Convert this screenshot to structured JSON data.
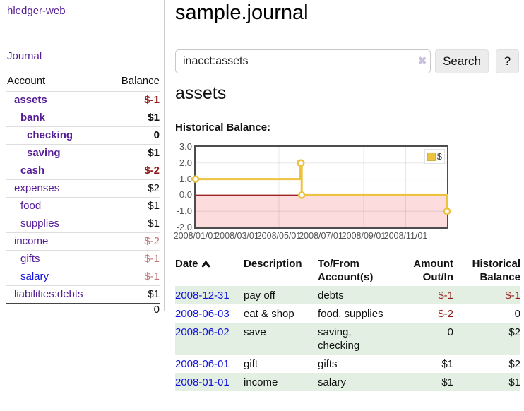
{
  "app": {
    "title": "hledger-web",
    "journal_label": "Journal"
  },
  "colors": {
    "link_purple": "#541d96",
    "link_blue": "#1212e0",
    "negative_strong": "#941c1c",
    "negative_light": "#c17878",
    "row_stripe_green": "#e2efe2",
    "chart_line_gold": "#edc240",
    "chart_negative_region": "#fcdcdc",
    "chart_zero_line": "#9e2222"
  },
  "sidebar": {
    "header": {
      "account": "Account",
      "balance": "Balance"
    },
    "accounts": [
      {
        "name": "assets",
        "level": 1,
        "balance": "$-1",
        "in_query": true,
        "balance_tone": "neg",
        "link_tone": "purple"
      },
      {
        "name": "bank",
        "level": 2,
        "balance": "$1",
        "in_query": true,
        "balance_tone": "pos",
        "link_tone": "purple"
      },
      {
        "name": "checking",
        "level": 3,
        "balance": "0",
        "in_query": true,
        "balance_tone": "pos",
        "link_tone": "purple"
      },
      {
        "name": "saving",
        "level": 3,
        "balance": "$1",
        "in_query": true,
        "balance_tone": "pos",
        "link_tone": "purple"
      },
      {
        "name": "cash",
        "level": 2,
        "balance": "$-2",
        "in_query": true,
        "balance_tone": "neg",
        "link_tone": "purple"
      },
      {
        "name": "expenses",
        "level": 1,
        "balance": "$2",
        "in_query": false,
        "balance_tone": "pos",
        "link_tone": "purple"
      },
      {
        "name": "food",
        "level": 2,
        "balance": "$1",
        "in_query": false,
        "balance_tone": "pos",
        "link_tone": "purple"
      },
      {
        "name": "supplies",
        "level": 2,
        "balance": "$1",
        "in_query": false,
        "balance_tone": "pos",
        "link_tone": "purple"
      },
      {
        "name": "income",
        "level": 1,
        "balance": "$-2",
        "in_query": false,
        "balance_tone": "neglight",
        "link_tone": "purple"
      },
      {
        "name": "gifts",
        "level": 2,
        "balance": "$-1",
        "in_query": false,
        "balance_tone": "neglight",
        "link_tone": "purple"
      },
      {
        "name": "salary",
        "level": 2,
        "balance": "$-1",
        "in_query": false,
        "balance_tone": "neglight",
        "link_tone": "blue"
      },
      {
        "name": "liabilities:debts",
        "level": 1,
        "balance": "$1",
        "in_query": false,
        "balance_tone": "pos",
        "link_tone": "purple"
      }
    ],
    "total": "0"
  },
  "main": {
    "title": "sample.journal"
  },
  "search": {
    "value": "inacct:assets",
    "clear_icon": "✖",
    "button_label": "Search",
    "help_label": "?"
  },
  "account_page": {
    "heading": "assets",
    "chart_title": "Historical Balance:"
  },
  "chart_data": {
    "type": "line",
    "step": true,
    "title": "Historical Balance:",
    "series": [
      {
        "name": "$",
        "color": "#edc240",
        "points": [
          [
            "2008-01-01",
            1
          ],
          [
            "2008-06-01",
            2
          ],
          [
            "2008-06-02",
            2
          ],
          [
            "2008-06-03",
            0
          ],
          [
            "2008-12-31",
            -1
          ]
        ]
      }
    ],
    "xlim": [
      "2008-01-01",
      "2008-12-31"
    ],
    "ylim": [
      -2,
      3
    ],
    "y_ticks": [
      "3.0",
      "2.0",
      "1.0",
      "0.0",
      "-1.0",
      "-2.0"
    ],
    "x_ticks": [
      {
        "date": "2008-01-01",
        "label": "2008/01/01"
      },
      {
        "date": "2008-03-01",
        "label": "2008/03/01"
      },
      {
        "date": "2008-05-01",
        "label": "2008/05/01"
      },
      {
        "date": "2008-07-01",
        "label": "2008/07/01"
      },
      {
        "date": "2008-09-01",
        "label": "2008/09/01"
      },
      {
        "date": "2008-11-01",
        "label": "2008/11/01"
      }
    ],
    "grid": true,
    "legend": {
      "label": "$",
      "position": "top-right"
    },
    "negative_region_color": "#fcdcdc",
    "zero_line_color": "#9e2222"
  },
  "register": {
    "columns": [
      {
        "label": "Date",
        "sorted": "asc"
      },
      {
        "label": "Description"
      },
      {
        "label": "To/From Account(s)"
      },
      {
        "label": "Amount Out/In",
        "align": "right"
      },
      {
        "label": "Historical Balance",
        "align": "right"
      }
    ],
    "rows": [
      {
        "date": "2008-12-31",
        "description": "pay off",
        "accounts": "debts",
        "amount": "$-1",
        "amount_negative": true,
        "balance": "$-1",
        "balance_negative": true
      },
      {
        "date": "2008-06-03",
        "description": "eat & shop",
        "accounts": "food, supplies",
        "amount": "$-2",
        "amount_negative": true,
        "balance": "0",
        "balance_negative": false
      },
      {
        "date": "2008-06-02",
        "description": "save",
        "accounts": "saving, checking",
        "amount": "0",
        "amount_negative": false,
        "balance": "$2",
        "balance_negative": false
      },
      {
        "date": "2008-06-01",
        "description": "gift",
        "accounts": "gifts",
        "amount": "$1",
        "amount_negative": false,
        "balance": "$2",
        "balance_negative": false
      },
      {
        "date": "2008-01-01",
        "description": "income",
        "accounts": "salary",
        "amount": "$1",
        "amount_negative": false,
        "balance": "$1",
        "balance_negative": false
      }
    ]
  }
}
